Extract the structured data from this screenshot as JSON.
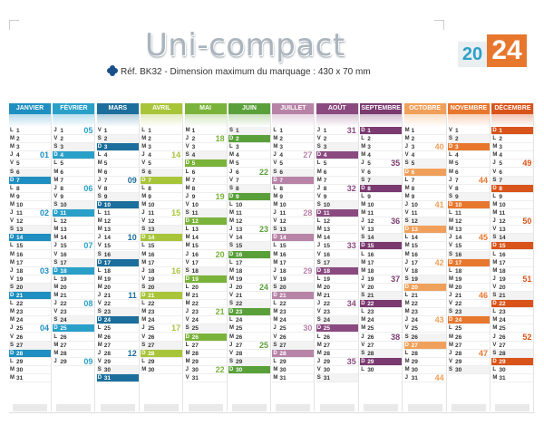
{
  "title": "Uni-compact",
  "ref": "Réf. BK32 - Dimension maximum du marquage : 430 x 70 mm",
  "year": {
    "part1": "20",
    "part2": "24"
  },
  "colors": {
    "title": "#aab4bd",
    "year_blue": "#2da0c8",
    "year_orange": "#e8772e",
    "brand": "#1b4f8a"
  },
  "months": [
    {
      "name": "JANVIER",
      "color": "#1e8fc0",
      "days": 31,
      "start": 0,
      "weeks": [
        "01",
        "02",
        "03",
        "04",
        "05"
      ]
    },
    {
      "name": "FÉVRIER",
      "color": "#2aa0c9",
      "days": 29,
      "start": 3,
      "weeks": [
        "05",
        "06",
        "07",
        "08",
        "09"
      ]
    },
    {
      "name": "MARS",
      "color": "#1c6f9c",
      "days": 31,
      "start": 4,
      "weeks": [
        "09",
        "10",
        "11",
        "12",
        "13"
      ]
    },
    {
      "name": "AVRIL",
      "color": "#a8c53a",
      "days": 30,
      "start": 0,
      "weeks": [
        "14",
        "15",
        "16",
        "17",
        "18"
      ]
    },
    {
      "name": "MAI",
      "color": "#7ab33a",
      "days": 31,
      "start": 2,
      "weeks": [
        "18",
        "19",
        "20",
        "21",
        "22"
      ]
    },
    {
      "name": "JUIN",
      "color": "#5aa03a",
      "days": 30,
      "start": 5,
      "weeks": [
        "22",
        "23",
        "24",
        "25",
        "26"
      ]
    },
    {
      "name": "JUILLET",
      "color": "#b784a8",
      "days": 31,
      "start": 0,
      "weeks": [
        "27",
        "28",
        "29",
        "30",
        "31"
      ]
    },
    {
      "name": "AOÛT",
      "color": "#8a4a80",
      "days": 31,
      "start": 3,
      "weeks": [
        "31",
        "32",
        "33",
        "34",
        "35"
      ]
    },
    {
      "name": "SEPTEMBRE",
      "color": "#7a3a70",
      "days": 30,
      "start": 6,
      "weeks": [
        "35",
        "36",
        "37",
        "38",
        "39"
      ]
    },
    {
      "name": "OCTOBRE",
      "color": "#f0a05a",
      "days": 31,
      "start": 1,
      "weeks": [
        "40",
        "41",
        "42",
        "43",
        "44"
      ]
    },
    {
      "name": "NOVEMBRE",
      "color": "#e8772e",
      "days": 30,
      "start": 4,
      "weeks": [
        "44",
        "45",
        "46",
        "47",
        "48"
      ]
    },
    {
      "name": "DÉCEMBRE",
      "color": "#d9541a",
      "days": 31,
      "start": 6,
      "weeks": [
        "49",
        "50",
        "51",
        "52",
        "01"
      ]
    }
  ],
  "weekday_letters": [
    "L",
    "M",
    "M",
    "J",
    "V",
    "S",
    "D"
  ]
}
